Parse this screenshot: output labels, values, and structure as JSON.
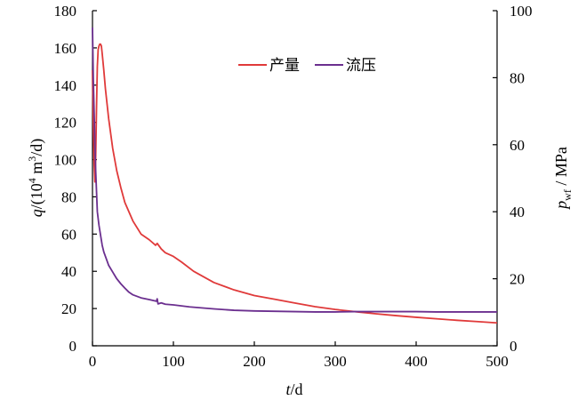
{
  "chart_data": {
    "type": "line",
    "xlabel": {
      "var": "t",
      "unit": "/d"
    },
    "ylabel_left": {
      "var": "q",
      "unit": "/(10",
      "sup": "4",
      "unit2": " m",
      "sup2": "3",
      "unit3": "/d)"
    },
    "ylabel_right": {
      "var": "p",
      "sub": "wf",
      "unit": " / MPa"
    },
    "xlim": [
      0,
      500
    ],
    "xticks": [
      "0",
      "100",
      "200",
      "300",
      "400",
      "500"
    ],
    "ylim_left": [
      0,
      180
    ],
    "yticks_left": [
      "0",
      "20",
      "40",
      "60",
      "80",
      "100",
      "120",
      "140",
      "160",
      "180"
    ],
    "ylim_right": [
      0,
      100
    ],
    "yticks_right": [
      "0",
      "20",
      "40",
      "60",
      "80",
      "100"
    ],
    "grid": false,
    "legend_position": "top-center",
    "series": [
      {
        "name": "产量",
        "axis": "left",
        "color": "#e03a3a",
        "points": [
          [
            0,
            148
          ],
          [
            1,
            120
          ],
          [
            2,
            98
          ],
          [
            3,
            88
          ],
          [
            4,
            102
          ],
          [
            5,
            128
          ],
          [
            6,
            150
          ],
          [
            7,
            159
          ],
          [
            8,
            161
          ],
          [
            9,
            162
          ],
          [
            10,
            162
          ],
          [
            11,
            161
          ],
          [
            12,
            157
          ],
          [
            14,
            148
          ],
          [
            16,
            138
          ],
          [
            18,
            130
          ],
          [
            20,
            122
          ],
          [
            25,
            106
          ],
          [
            30,
            94
          ],
          [
            35,
            85
          ],
          [
            40,
            77
          ],
          [
            50,
            67
          ],
          [
            60,
            60
          ],
          [
            70,
            57
          ],
          [
            78,
            54
          ],
          [
            80,
            55
          ],
          [
            85,
            52
          ],
          [
            90,
            50
          ],
          [
            100,
            48
          ],
          [
            110,
            45
          ],
          [
            125,
            40
          ],
          [
            150,
            34
          ],
          [
            175,
            30
          ],
          [
            200,
            27
          ],
          [
            225,
            25
          ],
          [
            250,
            23
          ],
          [
            275,
            21
          ],
          [
            300,
            19.5
          ],
          [
            325,
            18.3
          ],
          [
            350,
            17.2
          ],
          [
            375,
            16.2
          ],
          [
            400,
            15.3
          ],
          [
            425,
            14.5
          ],
          [
            450,
            13.7
          ],
          [
            475,
            13
          ],
          [
            500,
            12.3
          ]
        ]
      },
      {
        "name": "流压",
        "axis": "right",
        "color": "#6b2f8f",
        "points": [
          [
            0,
            95
          ],
          [
            0.5,
            88
          ],
          [
            1,
            80
          ],
          [
            2,
            70
          ],
          [
            3,
            60
          ],
          [
            4,
            52
          ],
          [
            5,
            46
          ],
          [
            6,
            40
          ],
          [
            8,
            36
          ],
          [
            10,
            33
          ],
          [
            12,
            30
          ],
          [
            14,
            28
          ],
          [
            17,
            26
          ],
          [
            20,
            24
          ],
          [
            25,
            22
          ],
          [
            30,
            20
          ],
          [
            35,
            18.5
          ],
          [
            40,
            17.2
          ],
          [
            45,
            16
          ],
          [
            50,
            15.2
          ],
          [
            60,
            14.3
          ],
          [
            70,
            13.8
          ],
          [
            79,
            13.3
          ],
          [
            80,
            14
          ],
          [
            81,
            12.5
          ],
          [
            85,
            12.8
          ],
          [
            90,
            12.4
          ],
          [
            100,
            12.2
          ],
          [
            120,
            11.6
          ],
          [
            150,
            11
          ],
          [
            175,
            10.6
          ],
          [
            200,
            10.4
          ],
          [
            225,
            10.3
          ],
          [
            250,
            10.2
          ],
          [
            275,
            10.1
          ],
          [
            300,
            10.1
          ],
          [
            325,
            10.2
          ],
          [
            350,
            10.2
          ],
          [
            375,
            10.2
          ],
          [
            400,
            10.2
          ],
          [
            425,
            10.1
          ],
          [
            450,
            10.1
          ],
          [
            475,
            10.1
          ],
          [
            500,
            10.1
          ]
        ]
      }
    ]
  }
}
